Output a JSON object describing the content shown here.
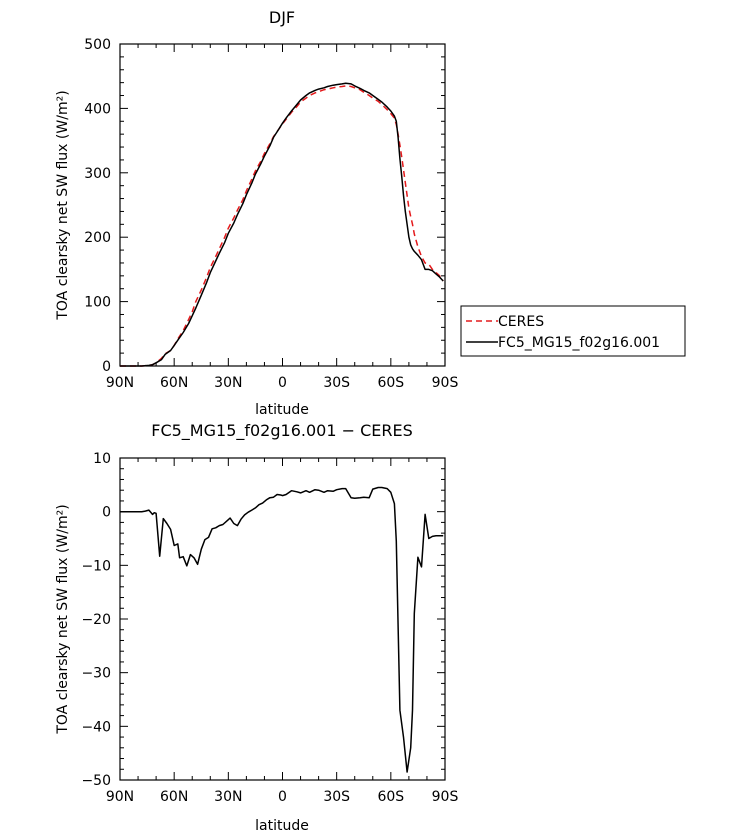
{
  "chart_data": [
    {
      "type": "line",
      "title": "DJF",
      "xlabel": "latitude",
      "ylabel": "TOA clearsky net SW flux (W/m²)",
      "xlim": [
        90,
        -90
      ],
      "ylim": [
        0,
        500
      ],
      "xticks": [
        90,
        60,
        30,
        0,
        -30,
        -60,
        -90
      ],
      "xtick_labels": [
        "90N",
        "60N",
        "30N",
        "0",
        "30S",
        "60S",
        "90S"
      ],
      "yticks": [
        0,
        100,
        200,
        300,
        400,
        500
      ],
      "ytick_labels": [
        "0",
        "100",
        "200",
        "300",
        "400",
        "500"
      ],
      "legend_position": "right",
      "series": [
        {
          "name": "CERES",
          "color": "#e41a1c",
          "dash": "dashed",
          "x": [
            90,
            86,
            82,
            78,
            74,
            72,
            70,
            67,
            65,
            62,
            60,
            58,
            55,
            52,
            50,
            48,
            45,
            42,
            40,
            37,
            35,
            32,
            30,
            27,
            25,
            22,
            20,
            17,
            15,
            12,
            10,
            7,
            5,
            2,
            0,
            -2,
            -5,
            -8,
            -10,
            -13,
            -15,
            -18,
            -20,
            -23,
            -25,
            -28,
            -30,
            -33,
            -35,
            -38,
            -40,
            -43,
            -45,
            -48,
            -50,
            -53,
            -55,
            -58,
            -60,
            -62,
            -63,
            -64,
            -65,
            -66,
            -67,
            -68,
            -69,
            -70,
            -71,
            -72,
            -73,
            -75,
            -77,
            -79,
            -81,
            -83,
            -85,
            -87,
            -89
          ],
          "y": [
            0,
            0,
            0,
            0,
            1,
            2,
            5,
            12,
            19,
            24,
            32,
            42,
            55,
            72,
            84,
            100,
            118,
            138,
            153,
            170,
            182,
            200,
            214,
            230,
            242,
            258,
            272,
            290,
            303,
            318,
            330,
            345,
            356,
            368,
            376,
            383,
            394,
            403,
            410,
            416,
            420,
            424,
            426,
            429,
            430,
            432,
            433,
            434,
            435,
            434,
            432,
            429,
            425,
            420,
            416,
            411,
            406,
            398,
            392,
            385,
            375,
            360,
            343,
            325,
            305,
            285,
            265,
            245,
            232,
            220,
            205,
            185,
            170,
            160,
            158,
            150,
            145,
            140,
            132
          ]
        },
        {
          "name": "FC5_MG15_f02g16.001",
          "color": "#000000",
          "dash": "solid",
          "x": [
            90,
            86,
            82,
            78,
            74,
            72,
            70,
            67,
            65,
            62,
            60,
            58,
            55,
            52,
            50,
            48,
            45,
            42,
            40,
            37,
            35,
            32,
            30,
            27,
            25,
            22,
            20,
            17,
            15,
            12,
            10,
            7,
            5,
            2,
            0,
            -2,
            -5,
            -8,
            -10,
            -13,
            -15,
            -18,
            -20,
            -23,
            -25,
            -28,
            -30,
            -33,
            -35,
            -38,
            -40,
            -43,
            -45,
            -48,
            -50,
            -53,
            -55,
            -58,
            -60,
            -62,
            -63,
            -64,
            -65,
            -66,
            -67,
            -68,
            -69,
            -70,
            -71,
            -72,
            -73,
            -75,
            -77,
            -79,
            -81,
            -83,
            -85,
            -87,
            -89
          ],
          "y": [
            0,
            0,
            0,
            0,
            1,
            2,
            5,
            10,
            18,
            24,
            32,
            40,
            52,
            66,
            78,
            90,
            110,
            130,
            145,
            163,
            175,
            192,
            206,
            222,
            235,
            252,
            266,
            284,
            298,
            314,
            326,
            342,
            355,
            368,
            377,
            385,
            396,
            406,
            413,
            420,
            424,
            428,
            430,
            432,
            434,
            436,
            437,
            438,
            439,
            438,
            435,
            431,
            428,
            424,
            420,
            414,
            410,
            402,
            396,
            388,
            380,
            355,
            322,
            295,
            265,
            240,
            220,
            200,
            188,
            182,
            178,
            172,
            165,
            150,
            150,
            148,
            143,
            138,
            132
          ]
        }
      ]
    },
    {
      "type": "line",
      "title": "FC5_MG15_f02g16.001 − CERES",
      "xlabel": "latitude",
      "ylabel": "TOA clearsky net SW flux (W/m²)",
      "xlim": [
        90,
        -90
      ],
      "ylim": [
        -50,
        10
      ],
      "xticks": [
        90,
        60,
        30,
        0,
        -30,
        -60,
        -90
      ],
      "xtick_labels": [
        "90N",
        "60N",
        "30N",
        "0",
        "30S",
        "60S",
        "90S"
      ],
      "yticks": [
        10,
        0,
        -10,
        -20,
        -30,
        -40,
        -50
      ],
      "ytick_labels": [
        "10",
        "0",
        "−10",
        "−20",
        "−30",
        "−40",
        "−50"
      ],
      "series": [
        {
          "name": "",
          "color": "#000000",
          "dash": "solid",
          "x": [
            90,
            86,
            82,
            78,
            76,
            74,
            72,
            71,
            70,
            68,
            66,
            64,
            62,
            60,
            58,
            57,
            55,
            53,
            51,
            49,
            47,
            45,
            43,
            41,
            39,
            37,
            35,
            33,
            31,
            29,
            27,
            25,
            23,
            21,
            19,
            17,
            15,
            13,
            11,
            9,
            7,
            5,
            3,
            1,
            0,
            -2,
            -5,
            -8,
            -10,
            -13,
            -15,
            -18,
            -20,
            -23,
            -25,
            -28,
            -30,
            -33,
            -35,
            -38,
            -40,
            -43,
            -45,
            -48,
            -50,
            -53,
            -55,
            -58,
            -60,
            -62,
            -63,
            -65,
            -67,
            -69,
            -71,
            -72,
            -73,
            -75,
            -77,
            -79,
            -81,
            -83,
            -85,
            -87,
            -89
          ],
          "y": [
            0,
            0,
            0,
            0,
            0.1,
            0.3,
            -0.5,
            -0.2,
            -0.3,
            -8.3,
            -1.3,
            -2.2,
            -3.3,
            -6.3,
            -6,
            -8.6,
            -8.4,
            -10.1,
            -8,
            -8.6,
            -9.8,
            -7,
            -5.2,
            -4.8,
            -3.2,
            -3,
            -2.6,
            -2.4,
            -1.8,
            -1.2,
            -2.2,
            -2.6,
            -1.4,
            -0.6,
            -0.1,
            0.3,
            0.7,
            1.3,
            1.6,
            2.2,
            2.6,
            2.7,
            3.2,
            3.1,
            3,
            3.2,
            3.9,
            3.7,
            3.5,
            3.9,
            3.6,
            4.1,
            4,
            3.6,
            3.9,
            3.8,
            4.1,
            4.3,
            4.3,
            2.6,
            2.5,
            2.6,
            2.7,
            2.6,
            4.2,
            4.5,
            4.5,
            4.3,
            3.6,
            1.5,
            -5.5,
            -37,
            -42,
            -48.5,
            -44,
            -37,
            -19,
            -8.5,
            -10.3,
            -0.5,
            -5,
            -4.6,
            -4.5,
            -4.5,
            -4.5
          ]
        }
      ]
    }
  ]
}
